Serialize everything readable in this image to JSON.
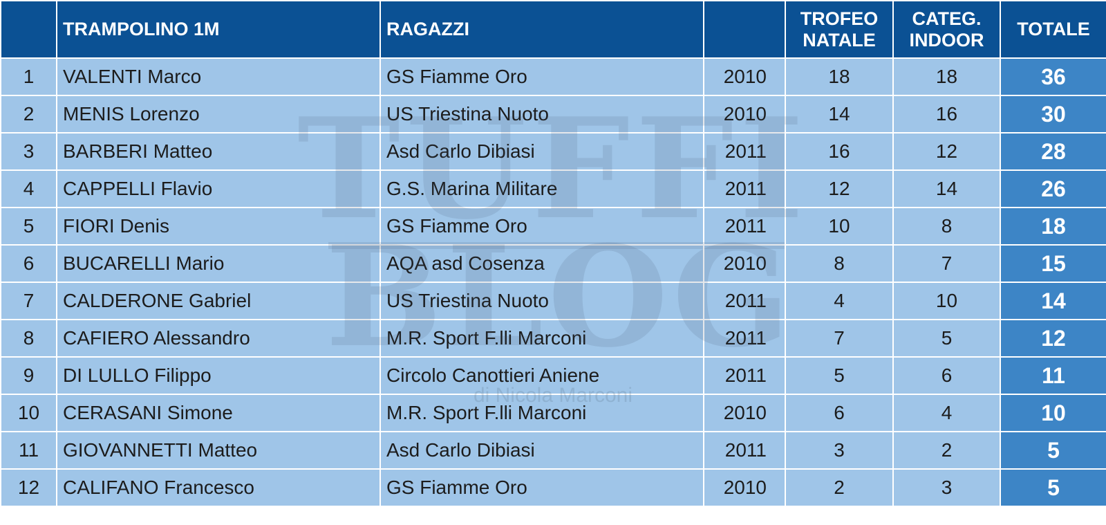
{
  "header": {
    "event": "TRAMPOLINO 1M",
    "category": "RAGAZZI",
    "trofeo": [
      "TROFEO",
      "NATALE"
    ],
    "indoor": [
      "CATEG.",
      "INDOOR"
    ],
    "total": "TOTALE"
  },
  "table": {
    "rows": [
      [
        1,
        "VALENTI Marco",
        "GS Fiamme Oro",
        2010,
        18,
        18,
        36
      ],
      [
        2,
        "MENIS Lorenzo",
        "US Triestina Nuoto",
        2010,
        14,
        16,
        30
      ],
      [
        3,
        "BARBERI Matteo",
        "Asd Carlo Dibiasi",
        2011,
        16,
        12,
        28
      ],
      [
        4,
        "CAPPELLI Flavio",
        "G.S. Marina Militare",
        2011,
        12,
        14,
        26
      ],
      [
        5,
        "FIORI Denis",
        "GS Fiamme Oro",
        2011,
        10,
        8,
        18
      ],
      [
        6,
        "BUCARELLI Mario",
        "AQA asd Cosenza",
        2010,
        8,
        7,
        15
      ],
      [
        7,
        "CALDERONE Gabriel",
        "US Triestina Nuoto",
        2011,
        4,
        10,
        14
      ],
      [
        8,
        "CAFIERO Alessandro",
        "M.R. Sport F.lli Marconi",
        2011,
        7,
        5,
        12
      ],
      [
        9,
        "DI LULLO Filippo",
        "Circolo Canottieri Aniene",
        2011,
        5,
        6,
        11
      ],
      [
        10,
        "CERASANI Simone",
        "M.R. Sport F.lli Marconi",
        2010,
        6,
        4,
        10
      ],
      [
        11,
        "GIOVANNETTI Matteo",
        "Asd Carlo Dibiasi",
        2011,
        3,
        2,
        5
      ],
      [
        12,
        "CALIFANO Francesco",
        "GS Fiamme Oro",
        2010,
        2,
        3,
        5
      ]
    ]
  },
  "watermark": {
    "line1": "TUFFI",
    "line2": "BLOG",
    "byline": "di Nicola Marconi"
  }
}
